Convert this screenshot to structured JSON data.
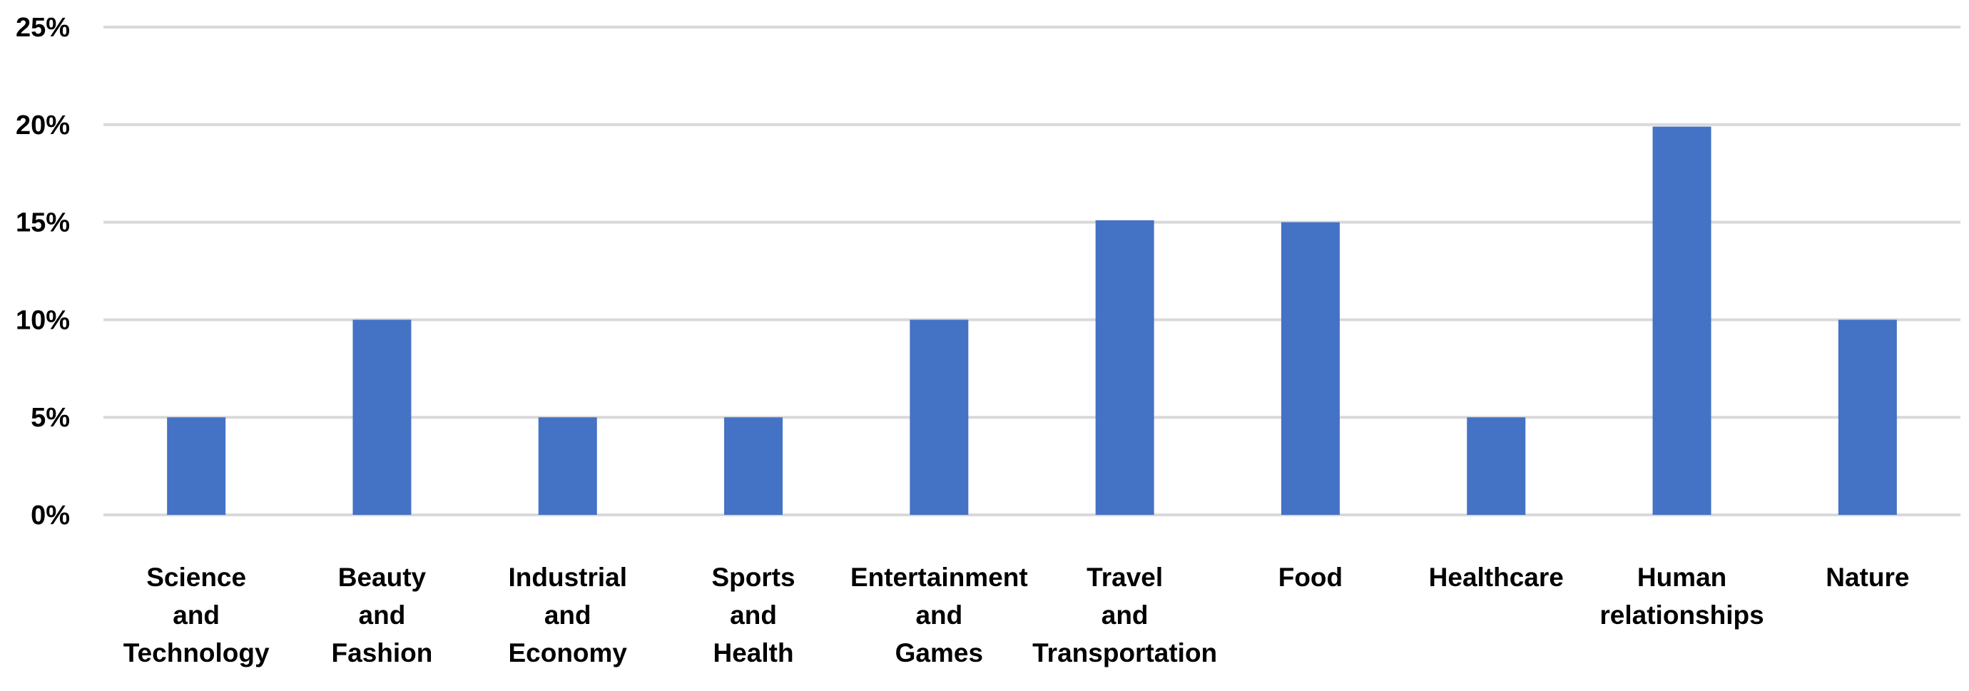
{
  "chart_data": {
    "type": "bar",
    "categories": [
      [
        "Science",
        "and",
        "Technology"
      ],
      [
        "Beauty",
        "and",
        "Fashion"
      ],
      [
        "Industrial",
        "and",
        "Economy"
      ],
      [
        "Sports",
        "and",
        "Health"
      ],
      [
        "Entertainment",
        "and",
        "Games"
      ],
      [
        "Travel",
        "and",
        "Transportation"
      ],
      [
        "Food"
      ],
      [
        "Healthcare"
      ],
      [
        "Human",
        "relationships"
      ],
      [
        "Nature"
      ]
    ],
    "values": [
      5,
      10,
      5,
      5,
      10,
      15.1,
      15,
      5,
      19.9,
      10
    ],
    "ylim": [
      0,
      25
    ],
    "yticks": [
      0,
      5,
      10,
      15,
      20,
      25
    ],
    "ytick_labels": [
      "0%",
      "5%",
      "10%",
      "15%",
      "20%",
      "25%"
    ],
    "grid": true,
    "legend": "none",
    "bar_color": "#4472c4"
  }
}
